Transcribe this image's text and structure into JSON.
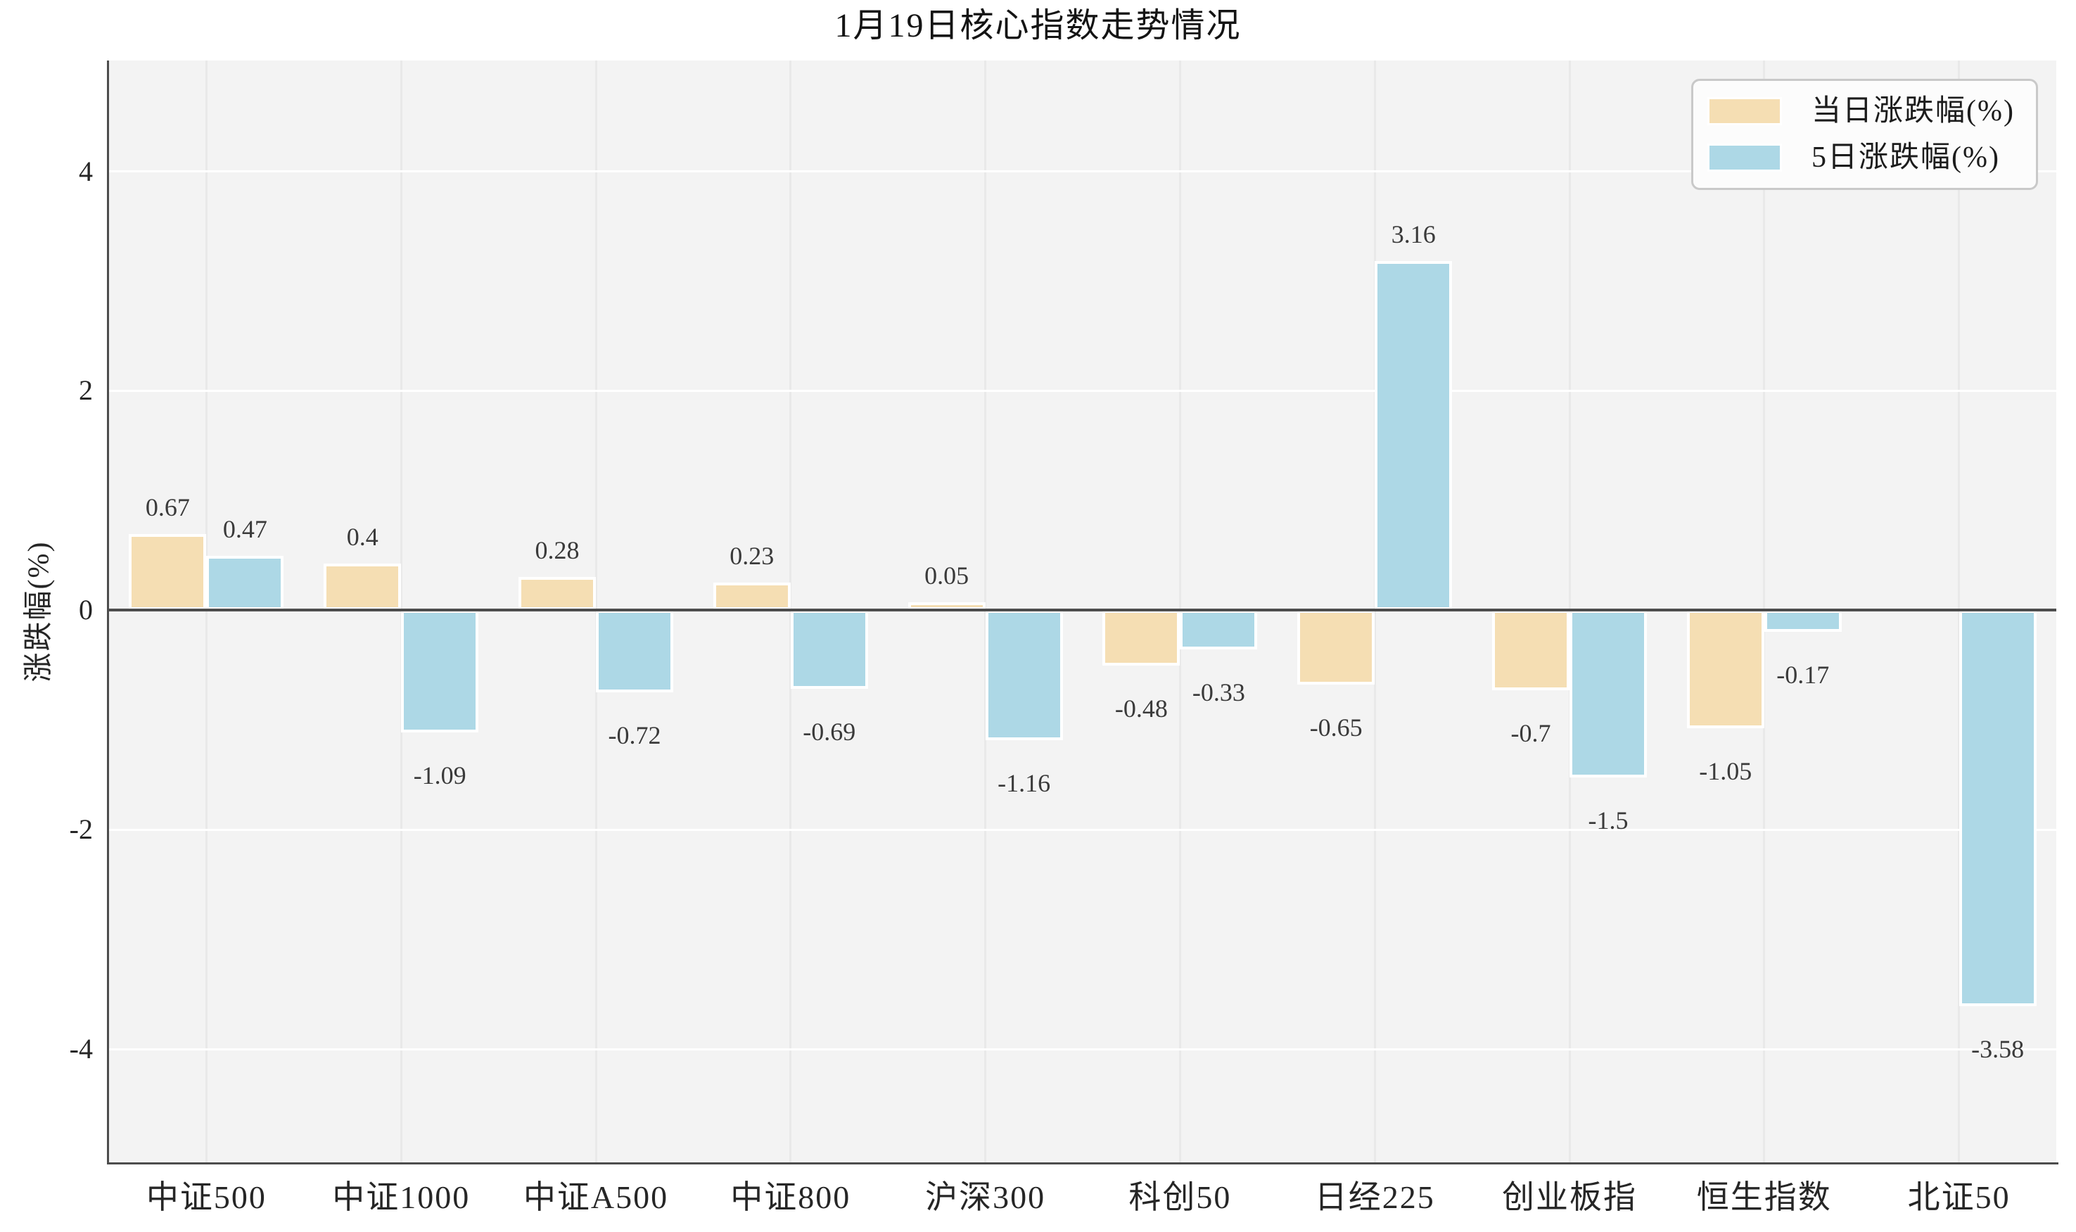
{
  "title": "1月19日核心指数走势情况",
  "legend": {
    "items": [
      {
        "label": "当日涨跌幅(%)",
        "color": "#F5DEB3"
      },
      {
        "label": "5日涨跌幅(%)",
        "color": "#ADD8E6"
      }
    ]
  },
  "y_axis": {
    "label": "涨跌幅(%)",
    "ticks": [
      4,
      2,
      0,
      -2,
      -4
    ]
  },
  "chart_data": {
    "type": "bar",
    "title": "1月19日核心指数走势情况",
    "xlabel": "",
    "ylabel": "涨跌幅(%)",
    "categories": [
      "中证500",
      "中证1000",
      "中证A500",
      "中证800",
      "沪深300",
      "科创50",
      "日经225",
      "创业板指",
      "恒生指数",
      "北证50"
    ],
    "series": [
      {
        "name": "当日涨跌幅(%)",
        "color": "#F5DEB3",
        "values": [
          0.67,
          0.4,
          0.28,
          0.23,
          0.05,
          -0.48,
          -0.65,
          -0.7,
          -1.05,
          null
        ]
      },
      {
        "name": "5日涨跌幅(%)",
        "color": "#ADD8E6",
        "values": [
          0.47,
          -1.09,
          -0.72,
          -0.69,
          -1.16,
          -0.33,
          3.16,
          -1.5,
          -0.17,
          -3.58
        ]
      }
    ],
    "ylim": [
      -5.03,
      5.01
    ],
    "yticks": [
      4,
      2,
      0,
      -2,
      -4
    ],
    "grid": true,
    "legend_position": "upper right",
    "bar_value_labels": true
  },
  "colors": {
    "plot_background": "#f3f3f3",
    "figure_background": "#ffffff",
    "grid_horizontal": "#ffffff",
    "grid_vertical": "#e9e9e9",
    "spine": "#4d4d4d",
    "zero_line": "#4d4d4d",
    "bar_edge": "#ffffff",
    "tick_text": "#262626",
    "value_label_text": "#3a3a3a",
    "legend_border": "#c9c9c9",
    "legend_background": "#fcfcfc"
  }
}
